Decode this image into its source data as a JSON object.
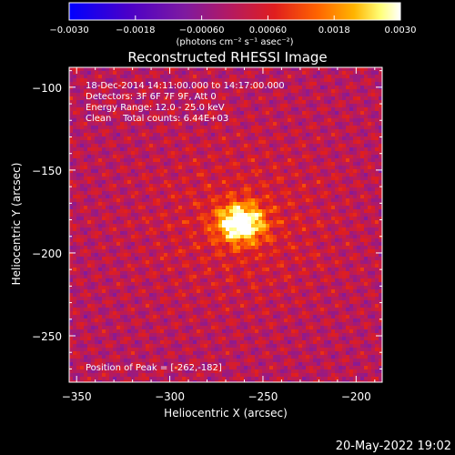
{
  "chart_data": {
    "type": "heatmap",
    "title": "Reconstructed RHESSI Image",
    "xlabel": "Heliocentric X (arcsec)",
    "ylabel": "Heliocentric Y (arcsec)",
    "xlim": [
      -354,
      -186
    ],
    "ylim": [
      -278,
      -88
    ],
    "x_ticks": [
      -350,
      -300,
      -250,
      -200
    ],
    "x_tick_labels": [
      "−350",
      "−300",
      "−250",
      "−200"
    ],
    "y_ticks": [
      -100,
      -150,
      -200,
      -250
    ],
    "y_tick_labels": [
      "−100",
      "−150",
      "−200",
      "−250"
    ],
    "colorbar": {
      "range": [
        -0.003,
        0.003
      ],
      "ticks": [
        -0.003,
        -0.0018,
        -0.0006,
        0.0006,
        0.0018,
        0.003
      ],
      "tick_labels": [
        "−0.0030",
        "−0.0018",
        "−0.00060",
        "0.00060",
        "0.0018",
        "0.0030"
      ],
      "unit_label": "(photons cm⁻² s⁻¹ asec⁻²)",
      "colormap": [
        "#0000ff",
        "#4b00c8",
        "#7f1aa0",
        "#b21a64",
        "#e01e1e",
        "#ff6400",
        "#ffb400",
        "#ffff78",
        "#ffffff"
      ]
    },
    "peak": {
      "x": -262,
      "y": -182
    },
    "annotations": [
      "18-Dec-2014 14:11:00.000 to 14:17:00.000",
      "Detectors: 3F 6F 7F 9F, Att 0",
      "Energy Range: 12.0 - 25.0 keV",
      "Clean    Total counts: 6.44E+03"
    ],
    "peak_label": "Position of Peak = [-262,-182]",
    "grid": false,
    "legend": "none"
  },
  "footer": {
    "timestamp": "20-May-2022 19:02"
  }
}
